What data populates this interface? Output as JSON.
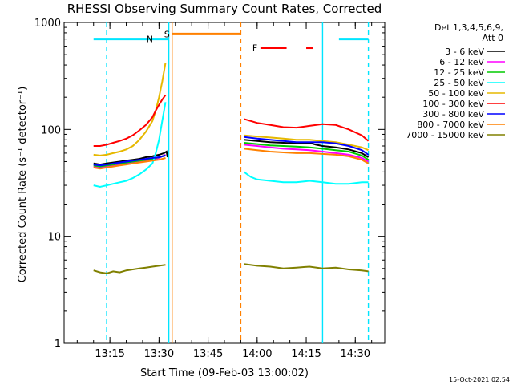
{
  "chart_data": {
    "type": "line",
    "title": "RHESSI Observing Summary Count Rates, Corrected",
    "xlabel": "Start Time (09-Feb-03 13:00:02)",
    "ylabel": "Corrected Count Rate (s⁻¹ detector⁻¹)",
    "yscale": "log",
    "ylim": [
      1,
      1000
    ],
    "xlim_minutes": [
      1,
      39
    ],
    "x_ticks": [
      {
        "minutes": 15,
        "label": "13:15"
      },
      {
        "minutes": 30,
        "label": "13:30"
      },
      {
        "minutes": 45,
        "label": "13:45"
      },
      {
        "minutes": 60,
        "label": "14:00"
      },
      {
        "minutes": 75,
        "label": "14:15"
      },
      {
        "minutes": 90,
        "label": "14:30"
      }
    ],
    "y_ticks": [
      {
        "value": 1,
        "label": "1"
      },
      {
        "value": 10,
        "label": "10"
      },
      {
        "value": 100,
        "label": "100"
      },
      {
        "value": 1000,
        "label": "1000"
      }
    ],
    "legend_header": [
      "Det 1,3,4,5,6,9,",
      "Att 0"
    ],
    "legend_position": "right",
    "timestamp": "15-Oct-2021 02:54",
    "series": [
      {
        "name": "3 - 6 keV",
        "color": "#000000",
        "segments": [
          {
            "x": [
              10,
              12,
              14,
              16,
              18,
              20,
              22,
              24,
              26,
              28,
              30,
              31.5,
              32.3,
              32.6
            ],
            "y": [
              48,
              47,
              48,
              49,
              50,
              51,
              52,
              53,
              55,
              56,
              58,
              60,
              62,
              55
            ]
          },
          {
            "x": [
              56,
              60,
              64,
              68,
              72,
              74,
              76,
              78,
              80,
              84,
              88,
              92,
              94
            ],
            "y": [
              80,
              78,
              76,
              75,
              74,
              74,
              75,
              72,
              70,
              68,
              65,
              60,
              55
            ]
          }
        ]
      },
      {
        "name": "6 - 12 keV",
        "color": "#ff00ff",
        "segments": [
          {
            "x": [
              10,
              12,
              14,
              16,
              18,
              20,
              22,
              24,
              26,
              28,
              30,
              31,
              32
            ],
            "y": [
              45,
              44,
              45,
              46,
              47,
              48,
              49,
              50,
              51,
              52,
              54,
              56,
              58
            ]
          },
          {
            "x": [
              56,
              60,
              64,
              68,
              72,
              76,
              80,
              84,
              88,
              92,
              94
            ],
            "y": [
              72,
              70,
              68,
              66,
              65,
              64,
              62,
              60,
              58,
              54,
              50
            ]
          }
        ]
      },
      {
        "name": "12 - 25 keV",
        "color": "#00cc00",
        "segments": [
          {
            "x": [
              10,
              12,
              14,
              16,
              18,
              20,
              22,
              24,
              26,
              28,
              30,
              31,
              32
            ],
            "y": [
              46,
              45,
              46,
              47,
              48,
              49,
              50,
              51,
              52,
              53,
              55,
              56,
              57
            ]
          },
          {
            "x": [
              56,
              60,
              64,
              68,
              72,
              76,
              80,
              84,
              88,
              92,
              94
            ],
            "y": [
              75,
              73,
              71,
              70,
              69,
              68,
              66,
              64,
              62,
              57,
              52
            ]
          }
        ]
      },
      {
        "name": "25 - 50 keV",
        "color": "#00ffff",
        "segments": [
          {
            "x": [
              10,
              12,
              14,
              16,
              18,
              20,
              22,
              24,
              26,
              28,
              29,
              30,
              31,
              32
            ],
            "y": [
              30,
              29,
              30,
              31,
              32,
              33,
              35,
              38,
              42,
              48,
              60,
              80,
              120,
              180
            ]
          },
          {
            "x": [
              56,
              58,
              60,
              64,
              68,
              72,
              76,
              80,
              84,
              88,
              92,
              94
            ],
            "y": [
              40,
              36,
              34,
              33,
              32,
              32,
              33,
              32,
              31,
              31,
              32,
              32
            ]
          }
        ]
      },
      {
        "name": "50 - 100 keV",
        "color": "#e6b800",
        "segments": [
          {
            "x": [
              10,
              12,
              14,
              16,
              18,
              20,
              22,
              24,
              26,
              28,
              29,
              30,
              31,
              32
            ],
            "y": [
              58,
              57,
              58,
              60,
              62,
              65,
              70,
              80,
              95,
              120,
              150,
              200,
              280,
              420
            ]
          },
          {
            "x": [
              56,
              60,
              64,
              68,
              72,
              76,
              80,
              84,
              88,
              92,
              94
            ],
            "y": [
              88,
              86,
              84,
              82,
              80,
              80,
              78,
              76,
              72,
              68,
              64
            ]
          }
        ]
      },
      {
        "name": "100 - 300 keV",
        "color": "#ff0000",
        "segments": [
          {
            "x": [
              10,
              12,
              14,
              16,
              18,
              20,
              22,
              24,
              26,
              28,
              29,
              30,
              31,
              32
            ],
            "y": [
              70,
              70,
              72,
              75,
              78,
              82,
              88,
              98,
              110,
              130,
              150,
              170,
              190,
              210
            ]
          },
          {
            "x": [
              56,
              58,
              60,
              64,
              68,
              72,
              76,
              80,
              84,
              88,
              92,
              94
            ],
            "y": [
              125,
              120,
              115,
              110,
              105,
              104,
              108,
              112,
              110,
              100,
              88,
              78
            ]
          }
        ]
      },
      {
        "name": "300 - 800 keV",
        "color": "#0000ff",
        "segments": [
          {
            "x": [
              10,
              12,
              14,
              16,
              18,
              20,
              22,
              24,
              26,
              28,
              30,
              31,
              32
            ],
            "y": [
              47,
              46,
              47,
              48,
              49,
              50,
              51,
              52,
              53,
              54,
              55,
              56,
              57
            ]
          },
          {
            "x": [
              56,
              60,
              64,
              68,
              72,
              76,
              80,
              84,
              88,
              92,
              94
            ],
            "y": [
              85,
              82,
              80,
              78,
              76,
              76,
              76,
              74,
              70,
              64,
              58
            ]
          }
        ]
      },
      {
        "name": "800 - 7000 keV",
        "color": "#ff8000",
        "segments": [
          {
            "x": [
              10,
              12,
              14,
              16,
              18,
              20,
              22,
              24,
              26,
              28,
              30,
              31,
              32
            ],
            "y": [
              44,
              43,
              44,
              45,
              46,
              47,
              48,
              49,
              50,
              51,
              52,
              53,
              54
            ]
          },
          {
            "x": [
              56,
              60,
              64,
              68,
              72,
              76,
              80,
              84,
              88,
              92,
              94
            ],
            "y": [
              66,
              64,
              62,
              61,
              60,
              60,
              59,
              58,
              56,
              52,
              48
            ]
          }
        ]
      },
      {
        "name": "7000 - 15000 keV",
        "color": "#808000",
        "segments": [
          {
            "x": [
              10,
              12,
              14,
              16,
              18,
              20,
              22,
              24,
              26,
              28,
              30,
              32
            ],
            "y": [
              4.8,
              4.6,
              4.5,
              4.7,
              4.6,
              4.8,
              4.9,
              5,
              5.1,
              5.2,
              5.3,
              5.4
            ]
          },
          {
            "x": [
              56,
              60,
              64,
              68,
              72,
              76,
              80,
              84,
              88,
              92,
              94
            ],
            "y": [
              5.5,
              5.3,
              5.2,
              5.0,
              5.1,
              5.2,
              5.0,
              5.1,
              4.9,
              4.8,
              4.7
            ]
          }
        ]
      }
    ],
    "markers": [
      {
        "label": "N",
        "color": "#00e5ff",
        "level": 700,
        "segments": [
          [
            10,
            33
          ],
          [
            85,
            94
          ]
        ]
      },
      {
        "label": "S",
        "color": "#ff8000",
        "level": 780,
        "segments": [
          [
            34,
            55
          ]
        ]
      },
      {
        "label": "F",
        "color": "#ff0000",
        "level": 580,
        "segments": [
          [
            61,
            69
          ],
          [
            75,
            77
          ]
        ]
      }
    ],
    "vertical_lines": [
      {
        "minutes": 14,
        "color": "#00e5ff",
        "style": "dashed"
      },
      {
        "minutes": 33,
        "color": "#00e5ff",
        "style": "solid"
      },
      {
        "minutes": 34,
        "color": "#ff8000",
        "style": "solid"
      },
      {
        "minutes": 55,
        "color": "#ff8000",
        "style": "dashed"
      },
      {
        "minutes": 80,
        "color": "#00e5ff",
        "style": "solid"
      },
      {
        "minutes": 94,
        "color": "#00e5ff",
        "style": "dashed"
      }
    ]
  }
}
